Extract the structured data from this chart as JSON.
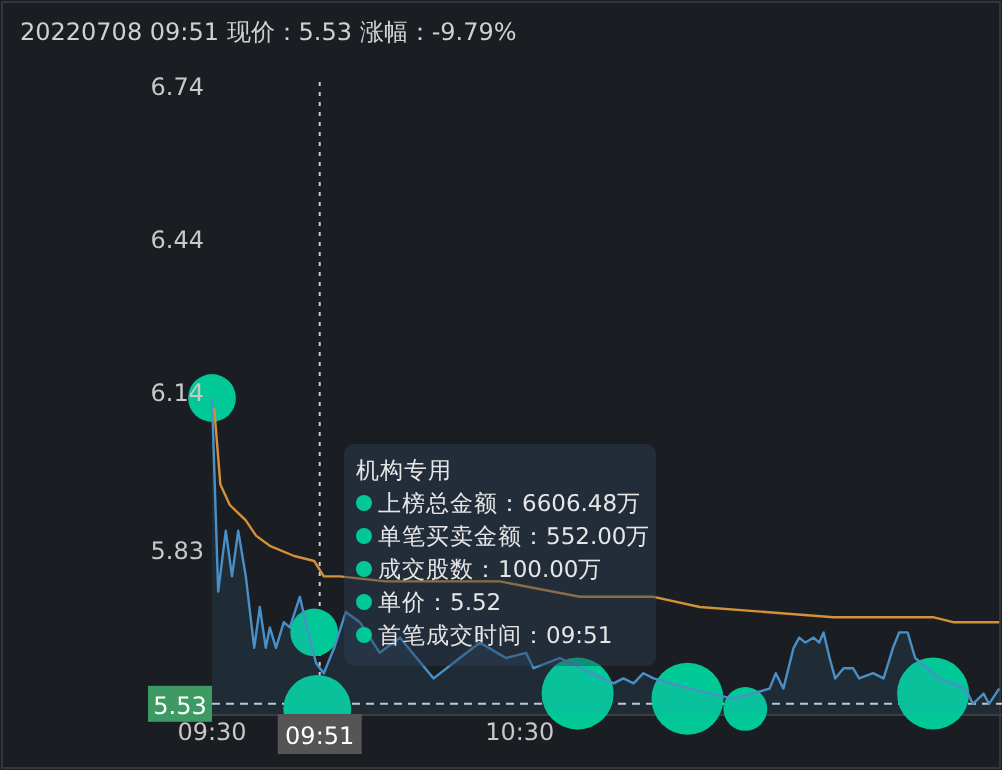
{
  "chart_data": {
    "type": "area",
    "title": "20220708 09:51 现价：5.53 涨幅：-9.79%",
    "annotations": [
      "机构专用",
      "上榜总金额：6606.48万",
      "单笔买卖金额：552.00万",
      "成交股数：100.00万",
      "单价：5.52",
      "首笔成交时间：09:51",
      {
        "text": "09:51",
        "x": 9.85,
        "y": 5.51
      }
    ],
    "xlim": [
      9.5,
      12.067
    ],
    "xticks": [
      {
        "value": 9.5,
        "label": "09:30"
      },
      {
        "value": 10.5,
        "label": "10:30"
      }
    ],
    "ylim": [
      5.51,
      6.75
    ],
    "yticks": [
      6.74,
      6.44,
      6.14,
      5.83
    ],
    "grid": false,
    "ref_lines": [
      {
        "axis": "y",
        "value": 5.53,
        "label": "5.53",
        "color": "#cfcfcf",
        "line_style": "dashed"
      },
      {
        "axis": "x",
        "value": 9.85,
        "color": "#cfcfcf",
        "line_style": "dotted"
      }
    ],
    "series": [
      {
        "type": "bubble",
        "color": "#00c896",
        "x": [
          9.5,
          9.832,
          9.842,
          10.688,
          11.045,
          11.233,
          11.843
        ],
        "values": [
          6.13,
          5.67,
          5.52,
          5.55,
          5.54,
          5.52,
          5.55
        ],
        "sizes": [
          0.44,
          0.44,
          0.89,
          1,
          1,
          0.37,
          1
        ]
      },
      {
        "color": "#4a90c8",
        "x": [
          9.5,
          9.52,
          9.545,
          9.565,
          9.585,
          9.61,
          9.637,
          9.655,
          9.675,
          9.688,
          9.708,
          9.733,
          9.753,
          9.785,
          9.805,
          9.838,
          9.863,
          9.897,
          9.935,
          9.98,
          10.045,
          10.11,
          10.22,
          10.305,
          10.37,
          10.455,
          10.52,
          10.545,
          10.63,
          10.805,
          10.837,
          10.87,
          10.902,
          10.935,
          11.052,
          11.195,
          11.312,
          11.332,
          11.357,
          11.39,
          11.408,
          11.428,
          11.455,
          11.473,
          11.487,
          11.507,
          11.525,
          11.552,
          11.583,
          11.603,
          11.648,
          11.682,
          11.713,
          11.733,
          11.76,
          11.785,
          11.863,
          11.948,
          11.973,
          12.007,
          12.025,
          12.058
        ],
        "values": [
          6.13,
          5.75,
          5.87,
          5.78,
          5.87,
          5.78,
          5.64,
          5.72,
          5.64,
          5.68,
          5.64,
          5.69,
          5.68,
          5.74,
          5.69,
          5.61,
          5.59,
          5.64,
          5.71,
          5.69,
          5.63,
          5.66,
          5.58,
          5.62,
          5.65,
          5.62,
          5.63,
          5.6,
          5.62,
          5.57,
          5.58,
          5.57,
          5.59,
          5.58,
          5.56,
          5.54,
          5.56,
          5.59,
          5.56,
          5.64,
          5.66,
          5.65,
          5.66,
          5.65,
          5.67,
          5.62,
          5.58,
          5.6,
          5.6,
          5.58,
          5.59,
          5.58,
          5.64,
          5.67,
          5.67,
          5.62,
          5.58,
          5.56,
          5.53,
          5.55,
          5.53,
          5.56
        ]
      },
      {
        "type": "line",
        "color": "#d4913a",
        "x": [
          9.507,
          9.527,
          9.558,
          9.61,
          9.643,
          9.688,
          9.767,
          9.832,
          9.863,
          9.915,
          10.065,
          10.435,
          10.695,
          10.935,
          11.085,
          11.298,
          11.52,
          11.843,
          11.908,
          12.058
        ],
        "values": [
          6.11,
          5.96,
          5.92,
          5.89,
          5.86,
          5.84,
          5.82,
          5.81,
          5.78,
          5.78,
          5.77,
          5.77,
          5.74,
          5.74,
          5.72,
          5.71,
          5.7,
          5.7,
          5.69,
          5.69
        ]
      }
    ]
  }
}
